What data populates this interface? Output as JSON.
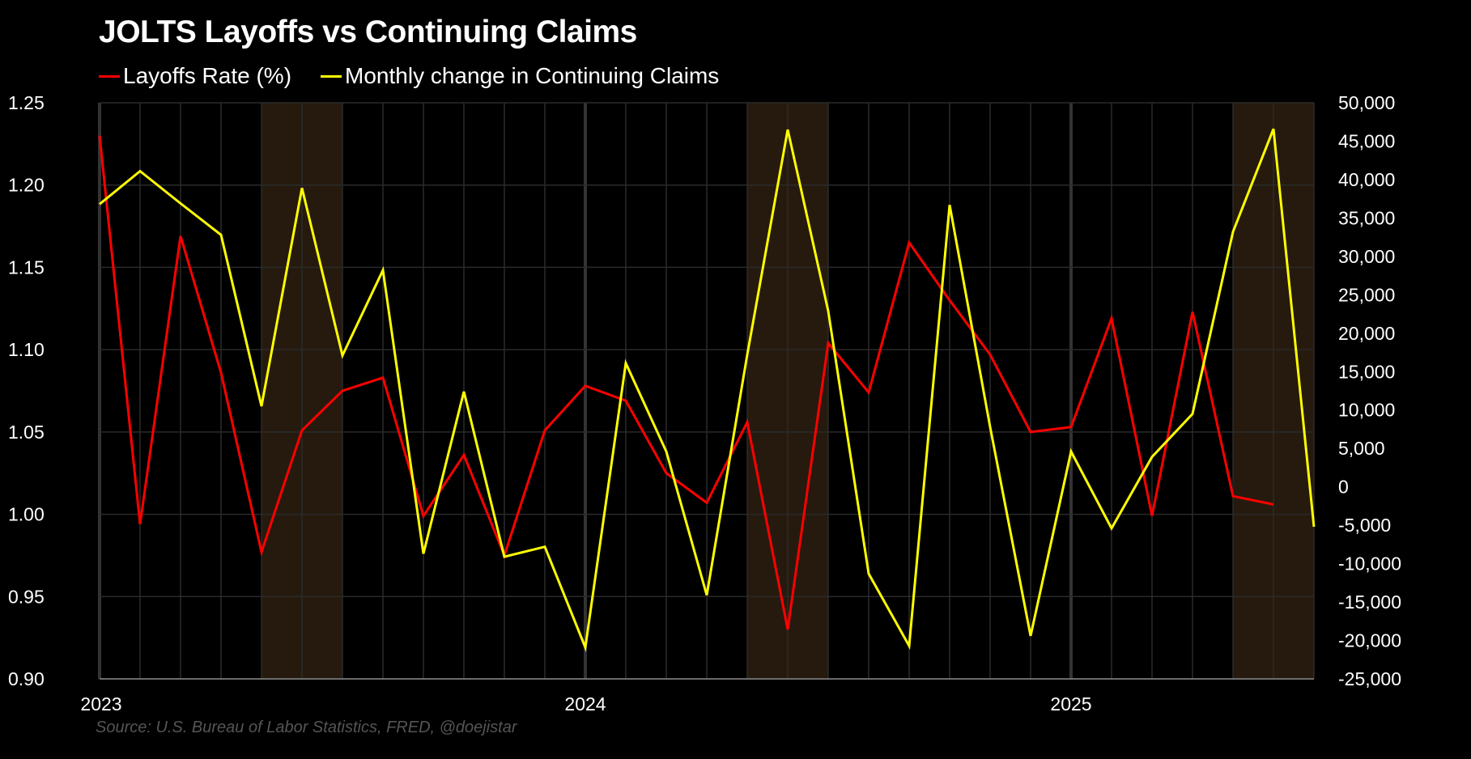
{
  "chart_data": {
    "type": "line",
    "title": "JOLTS Layoffs vs Continuing Claims",
    "source": "Source: U.S. Bureau of Labor Statistics, FRED, @doejistar",
    "x_start": "2023-01",
    "x_end": "2025-07",
    "x_year_labels": [
      {
        "label": "2023",
        "month_index": 0
      },
      {
        "label": "2024",
        "month_index": 12
      },
      {
        "label": "2025",
        "month_index": 24
      }
    ],
    "shaded_periods": [
      [
        4,
        6
      ],
      [
        16,
        18
      ],
      [
        28,
        30
      ]
    ],
    "left_axis": {
      "ylim": [
        0.9,
        1.25
      ],
      "ticks": [
        "1.25",
        "1.20",
        "1.15",
        "1.10",
        "1.05",
        "1.00",
        "0.95",
        "0.90"
      ],
      "tick_values": [
        1.25,
        1.2,
        1.15,
        1.1,
        1.05,
        1.0,
        0.95,
        0.9
      ]
    },
    "right_axis": {
      "ylim": [
        -25000,
        50000
      ],
      "ticks": [
        "50,000",
        "45,000",
        "40,000",
        "35,000",
        "30,000",
        "25,000",
        "20,000",
        "15,000",
        "10,000",
        "5,000",
        "0",
        "-5,000",
        "-10,000",
        "-15,000",
        "-20,000",
        "-25,000"
      ],
      "tick_values": [
        50000,
        45000,
        40000,
        35000,
        30000,
        25000,
        20000,
        15000,
        10000,
        5000,
        0,
        -5000,
        -10000,
        -15000,
        -20000,
        -25000
      ]
    },
    "series": [
      {
        "name": "Layoffs Rate (%)",
        "axis": "left",
        "color": "#ff0000",
        "values": [
          1.23,
          0.994,
          1.169,
          1.086,
          0.977,
          1.051,
          1.075,
          1.083,
          0.999,
          1.036,
          0.975,
          1.051,
          1.078,
          1.069,
          1.025,
          1.007,
          1.056,
          0.93,
          1.104,
          1.074,
          1.165,
          1.13,
          1.097,
          1.05,
          1.053,
          1.119,
          0.999,
          1.123,
          1.011,
          1.006
        ]
      },
      {
        "name": "Monthly change in Continuing Claims",
        "axis": "right",
        "color": "#ffff00",
        "values": [
          36800,
          41100,
          36900,
          32800,
          10500,
          38900,
          17100,
          28200,
          -8700,
          12400,
          -9100,
          -7800,
          -20900,
          16100,
          4600,
          -14100,
          17200,
          46500,
          22900,
          -11300,
          -20700,
          36700,
          7800,
          -19400,
          4600,
          -5400,
          3900,
          9500,
          33200,
          46600,
          -5200
        ]
      }
    ]
  }
}
